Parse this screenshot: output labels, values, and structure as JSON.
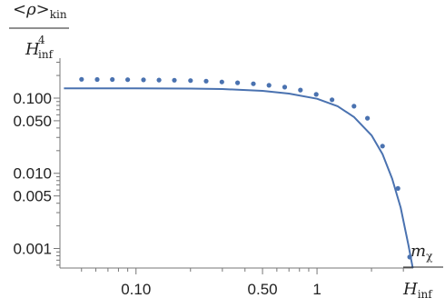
{
  "chart_data": {
    "type": "line",
    "x_scale": "log",
    "y_scale": "log",
    "xlim": [
      0.038,
      3.4
    ],
    "ylim": [
      0.00055,
      0.34
    ],
    "x_ticks_major": [
      {
        "value": 0.1,
        "label": "0.10"
      },
      {
        "value": 0.5,
        "label": "0.50"
      },
      {
        "value": 1,
        "label": "1"
      }
    ],
    "x_ticks_minor": [
      0.05,
      0.06,
      0.07,
      0.08,
      0.09,
      0.2,
      0.3,
      0.4,
      0.6,
      0.7,
      0.8,
      0.9,
      2,
      3
    ],
    "y_ticks_major": [
      {
        "value": 0.1,
        "label": "0.100"
      },
      {
        "value": 0.05,
        "label": "0.050"
      },
      {
        "value": 0.01,
        "label": "0.010"
      },
      {
        "value": 0.005,
        "label": "0.005"
      },
      {
        "value": 0.001,
        "label": "0.001"
      }
    ],
    "y_ticks_minor": [
      0.0006,
      0.0007,
      0.0008,
      0.0009,
      0.002,
      0.003,
      0.004,
      0.006,
      0.007,
      0.008,
      0.009,
      0.02,
      0.03,
      0.04,
      0.06,
      0.07,
      0.08,
      0.09,
      0.2,
      0.3
    ],
    "ylabel": {
      "numerator": "<ρ>",
      "numerator_sub": "kin",
      "denominator": "H",
      "denominator_sub": "inf",
      "denominator_sup": "4"
    },
    "xlabel": {
      "numerator": "m",
      "numerator_sub": "χ",
      "denominator": "H",
      "denominator_sub": "inf"
    },
    "color": "#4a72b0",
    "series": [
      {
        "kind": "line",
        "x": [
          0.04,
          0.1,
          0.2,
          0.3,
          0.5,
          0.7,
          1.0,
          1.3,
          1.6,
          2.0,
          2.3,
          2.6,
          2.9,
          3.2,
          3.38
        ],
        "y": [
          0.135,
          0.135,
          0.134,
          0.132,
          0.125,
          0.115,
          0.098,
          0.078,
          0.056,
          0.032,
          0.018,
          0.0085,
          0.0035,
          0.0011,
          0.00055
        ]
      },
      {
        "kind": "scatter",
        "x": [
          0.05,
          0.061,
          0.074,
          0.09,
          0.11,
          0.134,
          0.163,
          0.2,
          0.244,
          0.298,
          0.364,
          0.445,
          0.543,
          0.663,
          0.81,
          0.99,
          1.21,
          1.6,
          1.9,
          2.3,
          2.8,
          3.25
        ],
        "y": [
          0.178,
          0.177,
          0.177,
          0.176,
          0.175,
          0.174,
          0.173,
          0.171,
          0.168,
          0.164,
          0.16,
          0.155,
          0.148,
          0.14,
          0.128,
          0.112,
          0.095,
          0.078,
          0.054,
          0.023,
          0.0063,
          0.00077
        ]
      }
    ]
  }
}
